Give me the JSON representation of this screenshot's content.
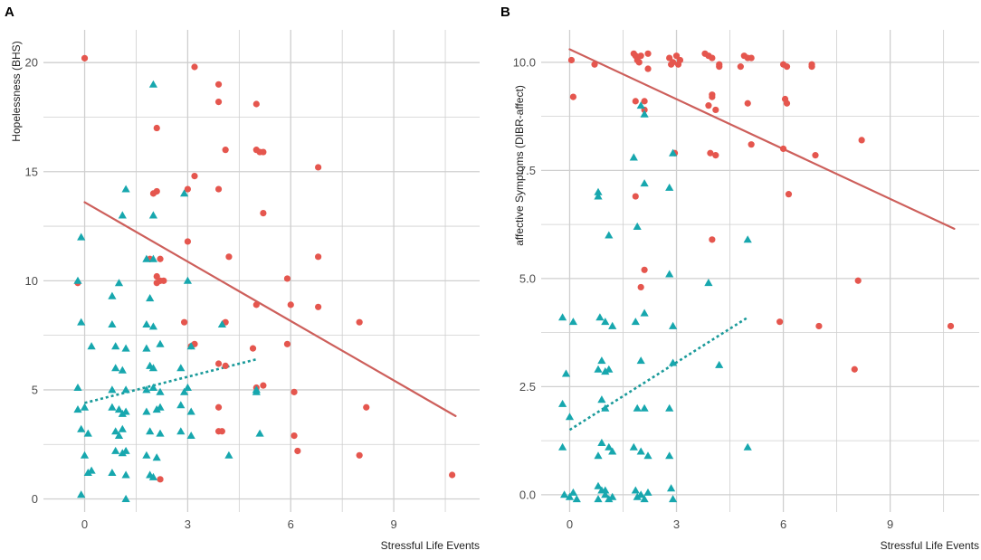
{
  "chart_data": [
    {
      "panel": "A",
      "type": "scatter",
      "title": "",
      "xlabel": "Stressful Life Events",
      "ylabel": "Hopelessness (BHS)",
      "xlim": [
        -1.2,
        11.5
      ],
      "ylim": [
        -0.6,
        21.5
      ],
      "xticks": [
        0,
        3,
        6,
        9
      ],
      "xtick_labels": [
        "0",
        "3",
        "6",
        "9"
      ],
      "yticks": [
        0,
        5,
        10,
        15,
        20
      ],
      "ytick_labels": [
        "0",
        "5",
        "10",
        "15",
        "20"
      ],
      "grid": true,
      "series": [
        {
          "name": "red-group",
          "color": "#e5564e",
          "marker": "circle",
          "points": [
            [
              0.0,
              20.2
            ],
            [
              -0.2,
              9.9
            ],
            [
              2.1,
              17.0
            ],
            [
              2.0,
              14.0
            ],
            [
              2.1,
              14.1
            ],
            [
              1.9,
              11.0
            ],
            [
              2.2,
              11.0
            ],
            [
              2.1,
              10.2
            ],
            [
              2.2,
              10.0
            ],
            [
              2.1,
              9.9
            ],
            [
              2.3,
              10.0
            ],
            [
              3.2,
              19.8
            ],
            [
              3.0,
              14.2
            ],
            [
              3.2,
              14.8
            ],
            [
              3.0,
              11.8
            ],
            [
              2.9,
              8.1
            ],
            [
              3.1,
              7.0
            ],
            [
              3.2,
              7.1
            ],
            [
              3.9,
              19.0
            ],
            [
              3.9,
              18.2
            ],
            [
              3.9,
              14.2
            ],
            [
              4.1,
              16.0
            ],
            [
              4.2,
              11.1
            ],
            [
              4.1,
              8.1
            ],
            [
              3.9,
              6.2
            ],
            [
              4.1,
              6.1
            ],
            [
              3.9,
              4.2
            ],
            [
              3.9,
              3.1
            ],
            [
              4.0,
              3.1
            ],
            [
              2.2,
              0.9
            ],
            [
              5.0,
              18.1
            ],
            [
              5.0,
              16.0
            ],
            [
              5.1,
              15.9
            ],
            [
              5.2,
              15.9
            ],
            [
              5.2,
              13.1
            ],
            [
              5.0,
              8.9
            ],
            [
              4.9,
              6.9
            ],
            [
              5.0,
              5.1
            ],
            [
              5.2,
              5.2
            ],
            [
              5.9,
              10.1
            ],
            [
              6.0,
              8.9
            ],
            [
              5.9,
              7.1
            ],
            [
              6.1,
              4.9
            ],
            [
              6.1,
              2.9
            ],
            [
              6.2,
              2.2
            ],
            [
              6.8,
              15.2
            ],
            [
              6.8,
              11.1
            ],
            [
              6.8,
              8.8
            ],
            [
              8.0,
              8.1
            ],
            [
              8.2,
              4.2
            ],
            [
              8.0,
              2.0
            ],
            [
              10.7,
              1.1
            ]
          ]
        },
        {
          "name": "teal-group",
          "color": "#17a7ae",
          "marker": "triangle",
          "points": [
            [
              -0.1,
              12.0
            ],
            [
              -0.2,
              10.0
            ],
            [
              -0.1,
              8.1
            ],
            [
              0.2,
              7.0
            ],
            [
              -0.2,
              5.1
            ],
            [
              -0.2,
              4.1
            ],
            [
              0.0,
              4.2
            ],
            [
              -0.1,
              3.2
            ],
            [
              0.1,
              3.0
            ],
            [
              0.0,
              2.0
            ],
            [
              0.1,
              1.2
            ],
            [
              0.2,
              1.3
            ],
            [
              -0.1,
              0.2
            ],
            [
              1.2,
              14.2
            ],
            [
              1.1,
              13.0
            ],
            [
              1.0,
              9.9
            ],
            [
              0.8,
              9.3
            ],
            [
              0.8,
              8.0
            ],
            [
              0.9,
              7.0
            ],
            [
              1.2,
              6.9
            ],
            [
              0.9,
              6.0
            ],
            [
              1.1,
              5.9
            ],
            [
              0.8,
              5.0
            ],
            [
              1.2,
              5.0
            ],
            [
              0.8,
              4.2
            ],
            [
              1.0,
              4.1
            ],
            [
              1.1,
              3.9
            ],
            [
              1.2,
              4.0
            ],
            [
              0.9,
              3.1
            ],
            [
              1.1,
              3.2
            ],
            [
              1.0,
              2.9
            ],
            [
              0.9,
              2.2
            ],
            [
              1.1,
              2.1
            ],
            [
              1.2,
              2.2
            ],
            [
              1.2,
              1.1
            ],
            [
              0.8,
              1.2
            ],
            [
              1.2,
              0.0
            ],
            [
              2.0,
              19.0
            ],
            [
              2.0,
              13.0
            ],
            [
              1.8,
              11.0
            ],
            [
              2.0,
              11.0
            ],
            [
              1.9,
              9.2
            ],
            [
              1.8,
              8.0
            ],
            [
              2.0,
              7.9
            ],
            [
              2.2,
              7.1
            ],
            [
              1.8,
              6.9
            ],
            [
              1.9,
              6.1
            ],
            [
              2.0,
              6.0
            ],
            [
              2.0,
              5.1
            ],
            [
              1.8,
              5.0
            ],
            [
              2.2,
              4.9
            ],
            [
              2.1,
              4.1
            ],
            [
              1.8,
              4.0
            ],
            [
              2.2,
              4.2
            ],
            [
              1.9,
              3.1
            ],
            [
              2.2,
              3.0
            ],
            [
              1.8,
              2.0
            ],
            [
              2.1,
              1.9
            ],
            [
              2.0,
              1.0
            ],
            [
              1.9,
              1.1
            ],
            [
              2.9,
              14.0
            ],
            [
              3.0,
              10.0
            ],
            [
              3.1,
              7.0
            ],
            [
              2.8,
              6.0
            ],
            [
              3.0,
              5.1
            ],
            [
              2.9,
              4.9
            ],
            [
              2.8,
              4.3
            ],
            [
              3.1,
              4.0
            ],
            [
              2.8,
              3.1
            ],
            [
              3.1,
              2.9
            ],
            [
              4.0,
              8.0
            ],
            [
              4.2,
              2.0
            ],
            [
              5.0,
              5.0
            ],
            [
              5.0,
              4.9
            ],
            [
              5.1,
              3.0
            ]
          ]
        }
      ],
      "fits": [
        {
          "name": "red-fit",
          "color": "#cd5f5b",
          "style": "solid",
          "x": [
            0.0,
            10.8
          ],
          "y": [
            13.6,
            3.8
          ]
        },
        {
          "name": "teal-fit",
          "color": "#1a9a9a",
          "style": "dotted",
          "x": [
            0.0,
            5.0
          ],
          "y": [
            4.4,
            6.4
          ]
        }
      ]
    },
    {
      "panel": "B",
      "type": "scatter",
      "title": "",
      "xlabel": "Stressful Life Events",
      "ylabel": "affective Symptoms (DIBR-affect)",
      "xlim": [
        -0.8,
        11.5
      ],
      "ylim": [
        -0.4,
        10.75
      ],
      "xticks": [
        0,
        3,
        6,
        9
      ],
      "xtick_labels": [
        "0",
        "3",
        "6",
        "9"
      ],
      "yticks": [
        0,
        2.5,
        5,
        7.5,
        10
      ],
      "ytick_labels": [
        "0.0",
        "2.5",
        "5.0",
        "7.5",
        "10.0"
      ],
      "grid": true,
      "series": [
        {
          "name": "red-group",
          "color": "#e5564e",
          "marker": "circle",
          "points": [
            [
              0.05,
              10.05
            ],
            [
              0.1,
              9.2
            ],
            [
              0.7,
              9.95
            ],
            [
              1.8,
              10.2
            ],
            [
              1.85,
              10.15
            ],
            [
              1.9,
              10.05
            ],
            [
              2.0,
              10.15
            ],
            [
              1.95,
              10.0
            ],
            [
              2.2,
              10.2
            ],
            [
              2.2,
              9.85
            ],
            [
              1.85,
              9.1
            ],
            [
              2.1,
              9.1
            ],
            [
              2.1,
              8.9
            ],
            [
              1.85,
              6.9
            ],
            [
              2.1,
              5.2
            ],
            [
              2.0,
              4.8
            ],
            [
              2.8,
              10.1
            ],
            [
              2.9,
              10.0
            ],
            [
              3.0,
              10.15
            ],
            [
              3.1,
              10.05
            ],
            [
              2.85,
              9.95
            ],
            [
              3.05,
              9.95
            ],
            [
              2.95,
              7.9
            ],
            [
              3.8,
              10.2
            ],
            [
              3.9,
              10.15
            ],
            [
              4.0,
              10.1
            ],
            [
              4.2,
              9.95
            ],
            [
              4.2,
              9.9
            ],
            [
              4.0,
              9.2
            ],
            [
              4.0,
              9.25
            ],
            [
              3.9,
              9.0
            ],
            [
              4.1,
              8.9
            ],
            [
              3.95,
              7.9
            ],
            [
              4.1,
              7.85
            ],
            [
              4.0,
              5.9
            ],
            [
              4.8,
              9.9
            ],
            [
              5.0,
              10.1
            ],
            [
              4.9,
              10.15
            ],
            [
              5.1,
              10.1
            ],
            [
              5.0,
              9.05
            ],
            [
              5.1,
              8.1
            ],
            [
              6.0,
              9.95
            ],
            [
              6.1,
              9.9
            ],
            [
              6.05,
              9.15
            ],
            [
              6.1,
              9.05
            ],
            [
              6.0,
              8.0
            ],
            [
              6.15,
              6.95
            ],
            [
              5.9,
              4.0
            ],
            [
              6.8,
              9.95
            ],
            [
              6.8,
              9.9
            ],
            [
              6.9,
              7.85
            ],
            [
              7.0,
              3.9
            ],
            [
              8.0,
              2.9
            ],
            [
              8.1,
              4.95
            ],
            [
              8.2,
              8.2
            ],
            [
              10.7,
              3.9
            ]
          ]
        },
        {
          "name": "teal-group",
          "color": "#17a7ae",
          "marker": "triangle",
          "points": [
            [
              -0.2,
              4.1
            ],
            [
              -0.1,
              2.8
            ],
            [
              -0.2,
              2.1
            ],
            [
              0.0,
              1.8
            ],
            [
              -0.2,
              1.1
            ],
            [
              0.1,
              4.0
            ],
            [
              -0.15,
              0.0
            ],
            [
              0.0,
              -0.05
            ],
            [
              0.2,
              -0.1
            ],
            [
              0.1,
              0.05
            ],
            [
              0.8,
              7.0
            ],
            [
              0.8,
              6.9
            ],
            [
              0.85,
              4.1
            ],
            [
              1.0,
              4.0
            ],
            [
              1.2,
              3.9
            ],
            [
              1.1,
              6.0
            ],
            [
              0.9,
              3.1
            ],
            [
              0.8,
              2.9
            ],
            [
              1.0,
              2.85
            ],
            [
              1.1,
              2.9
            ],
            [
              0.9,
              2.2
            ],
            [
              1.0,
              2.0
            ],
            [
              1.1,
              1.1
            ],
            [
              0.9,
              1.2
            ],
            [
              0.8,
              0.9
            ],
            [
              1.2,
              1.0
            ],
            [
              0.8,
              0.2
            ],
            [
              0.9,
              0.1
            ],
            [
              1.0,
              0.0
            ],
            [
              1.1,
              -0.1
            ],
            [
              1.2,
              -0.05
            ],
            [
              0.8,
              -0.1
            ],
            [
              1.0,
              0.1
            ],
            [
              1.8,
              7.8
            ],
            [
              1.9,
              6.2
            ],
            [
              2.0,
              9.0
            ],
            [
              2.1,
              8.8
            ],
            [
              2.1,
              7.2
            ],
            [
              1.85,
              4.0
            ],
            [
              2.1,
              4.2
            ],
            [
              2.0,
              3.1
            ],
            [
              1.9,
              2.0
            ],
            [
              2.1,
              2.0
            ],
            [
              1.8,
              1.1
            ],
            [
              2.0,
              1.0
            ],
            [
              2.2,
              0.9
            ],
            [
              1.85,
              0.1
            ],
            [
              2.0,
              0.0
            ],
            [
              2.1,
              -0.1
            ],
            [
              1.9,
              -0.05
            ],
            [
              2.2,
              0.05
            ],
            [
              2.9,
              7.9
            ],
            [
              2.8,
              7.1
            ],
            [
              2.8,
              5.1
            ],
            [
              2.9,
              3.9
            ],
            [
              2.9,
              3.05
            ],
            [
              2.8,
              2.0
            ],
            [
              2.8,
              0.9
            ],
            [
              2.85,
              0.15
            ],
            [
              2.9,
              -0.1
            ],
            [
              3.9,
              4.9
            ],
            [
              4.2,
              3.0
            ],
            [
              5.0,
              5.9
            ],
            [
              5.0,
              1.1
            ]
          ]
        }
      ],
      "fits": [
        {
          "name": "red-fit",
          "color": "#cd5f5b",
          "style": "solid",
          "x": [
            0.0,
            10.8
          ],
          "y": [
            10.3,
            6.15
          ]
        },
        {
          "name": "teal-fit",
          "color": "#1a9a9a",
          "style": "dotted",
          "x": [
            0.0,
            5.0
          ],
          "y": [
            1.5,
            4.1
          ]
        }
      ]
    }
  ]
}
